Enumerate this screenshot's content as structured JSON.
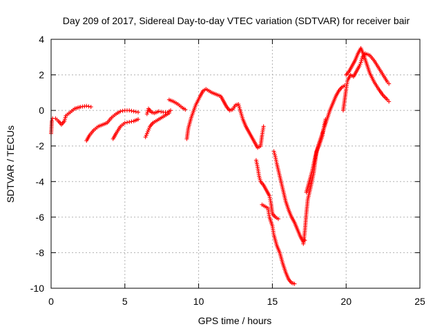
{
  "chart_data": {
    "type": "scatter",
    "title": "Day 209 of 2017, Sidereal Day-to-day VTEC variation (SDTVAR) for receiver bair",
    "xlabel": "GPS time / hours",
    "ylabel": "SDTVAR / TECUs",
    "xlim": [
      0,
      25
    ],
    "ylim": [
      -10,
      4
    ],
    "xticks": [
      "0",
      "5",
      "10",
      "15",
      "20",
      "25"
    ],
    "yticks": [
      "-10",
      "-8",
      "-6",
      "-4",
      "-2",
      "0",
      "2",
      "4"
    ],
    "grid": true,
    "legend": "none",
    "marker": "plus",
    "color": "#ff0000",
    "series": [
      {
        "segments": [
          [
            [
              0.0,
              -1.3
            ],
            [
              0.05,
              -0.6
            ],
            [
              0.1,
              -0.45
            ],
            [
              0.3,
              -0.45
            ],
            [
              0.5,
              -0.6
            ],
            [
              0.7,
              -0.8
            ],
            [
              0.9,
              -0.6
            ],
            [
              1.0,
              -0.3
            ],
            [
              1.3,
              -0.1
            ],
            [
              1.6,
              0.1
            ],
            [
              2.0,
              0.2
            ],
            [
              2.4,
              0.25
            ],
            [
              2.7,
              0.2
            ]
          ],
          [
            [
              2.4,
              -1.7
            ],
            [
              2.6,
              -1.4
            ],
            [
              2.9,
              -1.1
            ],
            [
              3.2,
              -0.9
            ],
            [
              3.5,
              -0.8
            ],
            [
              3.8,
              -0.7
            ],
            [
              4.1,
              -0.4
            ],
            [
              4.4,
              -0.2
            ],
            [
              4.7,
              -0.05
            ],
            [
              5.0,
              0.0
            ],
            [
              5.3,
              0.0
            ],
            [
              5.6,
              -0.05
            ],
            [
              5.9,
              -0.1
            ]
          ],
          [
            [
              4.2,
              -1.6
            ],
            [
              4.4,
              -1.3
            ],
            [
              4.7,
              -0.9
            ],
            [
              5.0,
              -0.7
            ],
            [
              5.3,
              -0.65
            ],
            [
              5.6,
              -0.6
            ],
            [
              5.9,
              -0.5
            ]
          ],
          [
            [
              6.4,
              -1.5
            ],
            [
              6.55,
              -1.2
            ],
            [
              6.7,
              -0.9
            ],
            [
              6.9,
              -0.7
            ],
            [
              7.2,
              -0.55
            ],
            [
              7.5,
              -0.4
            ],
            [
              7.8,
              -0.25
            ],
            [
              8.0,
              -0.15
            ]
          ],
          [
            [
              6.5,
              -0.2
            ],
            [
              6.6,
              0.1
            ],
            [
              6.8,
              -0.1
            ],
            [
              7.0,
              -0.15
            ],
            [
              7.3,
              -0.05
            ],
            [
              7.6,
              -0.1
            ],
            [
              7.9,
              -0.1
            ],
            [
              8.1,
              0.0
            ]
          ],
          [
            [
              8.0,
              0.6
            ],
            [
              8.3,
              0.5
            ],
            [
              8.6,
              0.35
            ],
            [
              8.9,
              0.15
            ],
            [
              9.1,
              0.05
            ]
          ],
          [
            [
              9.2,
              -1.6
            ],
            [
              9.3,
              -1.0
            ],
            [
              9.5,
              -0.4
            ],
            [
              9.8,
              0.3
            ],
            [
              10.1,
              0.8
            ],
            [
              10.3,
              1.1
            ],
            [
              10.5,
              1.2
            ],
            [
              10.7,
              1.1
            ],
            [
              10.9,
              1.0
            ],
            [
              11.2,
              0.9
            ],
            [
              11.5,
              0.8
            ],
            [
              11.7,
              0.5
            ],
            [
              11.9,
              0.2
            ],
            [
              12.1,
              0.0
            ],
            [
              12.3,
              0.05
            ],
            [
              12.5,
              0.3
            ],
            [
              12.7,
              0.35
            ],
            [
              12.8,
              0.05
            ],
            [
              13.0,
              -0.5
            ],
            [
              13.2,
              -0.9
            ],
            [
              13.4,
              -1.2
            ],
            [
              13.6,
              -1.5
            ],
            [
              13.8,
              -1.8
            ],
            [
              14.0,
              -2.1
            ],
            [
              14.2,
              -2.0
            ],
            [
              14.3,
              -1.4
            ],
            [
              14.4,
              -0.9
            ]
          ],
          [
            [
              13.9,
              -2.8
            ],
            [
              14.0,
              -3.2
            ],
            [
              14.1,
              -3.7
            ],
            [
              14.2,
              -4.0
            ],
            [
              14.4,
              -4.2
            ],
            [
              14.6,
              -4.5
            ],
            [
              14.8,
              -4.8
            ],
            [
              14.9,
              -5.2
            ],
            [
              15.0,
              -5.8
            ],
            [
              15.2,
              -6.0
            ],
            [
              15.4,
              -6.1
            ]
          ],
          [
            [
              14.3,
              -5.3
            ],
            [
              14.5,
              -5.4
            ],
            [
              14.7,
              -5.5
            ],
            [
              14.8,
              -6.0
            ],
            [
              15.0,
              -6.5
            ],
            [
              15.1,
              -7.0
            ],
            [
              15.3,
              -7.6
            ],
            [
              15.5,
              -8.0
            ],
            [
              15.7,
              -8.6
            ],
            [
              15.9,
              -9.1
            ],
            [
              16.1,
              -9.5
            ],
            [
              16.3,
              -9.7
            ],
            [
              16.5,
              -9.75
            ]
          ],
          [
            [
              15.1,
              -2.3
            ],
            [
              15.2,
              -2.6
            ],
            [
              15.3,
              -3.0
            ],
            [
              15.5,
              -3.7
            ],
            [
              15.7,
              -4.4
            ],
            [
              15.9,
              -5.1
            ],
            [
              16.1,
              -5.6
            ],
            [
              16.3,
              -6.0
            ],
            [
              16.5,
              -6.3
            ],
            [
              16.7,
              -6.7
            ],
            [
              16.9,
              -7.1
            ],
            [
              17.1,
              -7.4
            ],
            [
              17.2,
              -7.3
            ]
          ],
          [
            [
              17.1,
              -7.5
            ],
            [
              17.2,
              -6.8
            ],
            [
              17.3,
              -5.8
            ],
            [
              17.4,
              -5.0
            ],
            [
              17.6,
              -4.3
            ],
            [
              17.8,
              -3.5
            ],
            [
              17.9,
              -2.9
            ],
            [
              18.0,
              -2.3
            ],
            [
              18.2,
              -1.9
            ],
            [
              18.4,
              -1.4
            ],
            [
              18.5,
              -0.9
            ],
            [
              18.6,
              -0.5
            ]
          ],
          [
            [
              17.3,
              -4.6
            ],
            [
              17.5,
              -4.0
            ],
            [
              17.7,
              -3.4
            ],
            [
              17.9,
              -2.6
            ],
            [
              18.1,
              -2.0
            ],
            [
              18.3,
              -1.5
            ],
            [
              18.5,
              -1.0
            ],
            [
              18.7,
              -0.5
            ],
            [
              18.9,
              0.0
            ],
            [
              19.1,
              0.4
            ],
            [
              19.3,
              0.8
            ],
            [
              19.5,
              1.1
            ],
            [
              19.7,
              1.3
            ],
            [
              19.9,
              1.4
            ]
          ],
          [
            [
              19.8,
              0.0
            ],
            [
              19.9,
              0.6
            ],
            [
              20.0,
              1.2
            ],
            [
              20.1,
              1.7
            ],
            [
              20.3,
              2.0
            ],
            [
              20.5,
              1.9
            ],
            [
              20.7,
              2.2
            ],
            [
              20.9,
              2.5
            ],
            [
              21.0,
              2.7
            ],
            [
              21.1,
              3.0
            ],
            [
              21.3,
              3.2
            ],
            [
              21.6,
              3.1
            ],
            [
              21.9,
              2.8
            ],
            [
              22.2,
              2.4
            ],
            [
              22.5,
              2.0
            ],
            [
              22.8,
              1.6
            ],
            [
              22.9,
              1.5
            ]
          ],
          [
            [
              20.0,
              2.0
            ],
            [
              20.2,
              2.2
            ],
            [
              20.4,
              2.5
            ],
            [
              20.6,
              2.8
            ],
            [
              20.8,
              3.2
            ],
            [
              21.0,
              3.5
            ],
            [
              21.2,
              3.1
            ],
            [
              21.4,
              2.6
            ],
            [
              21.6,
              2.1
            ],
            [
              21.9,
              1.6
            ],
            [
              22.2,
              1.2
            ],
            [
              22.5,
              0.85
            ],
            [
              22.8,
              0.6
            ],
            [
              22.9,
              0.5
            ]
          ]
        ]
      }
    ]
  }
}
